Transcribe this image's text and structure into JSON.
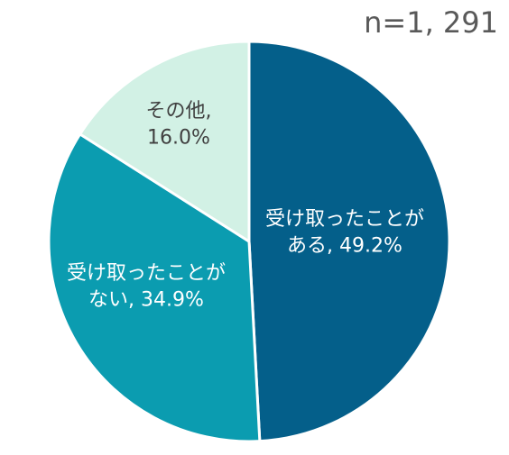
{
  "chart_data": {
    "type": "pie",
    "title": "",
    "note": "n=1, 291",
    "slices": [
      {
        "label_line1": "受け取ったことが",
        "label_line2": "ある, 49.2%",
        "category": "受け取ったことがある",
        "value": 49.2,
        "color": "#045f8a",
        "label_color": "#ffffff"
      },
      {
        "label_line1": "受け取ったことが",
        "label_line2": "ない, 34.9%",
        "category": "受け取ったことがない",
        "value": 34.9,
        "color": "#0b9cb0",
        "label_color": "#ffffff"
      },
      {
        "label_line1": "その他,",
        "label_line2": "16.0%",
        "category": "その他",
        "value": 16.0,
        "color": "#d2f1e5",
        "label_color": "#404040"
      }
    ]
  }
}
